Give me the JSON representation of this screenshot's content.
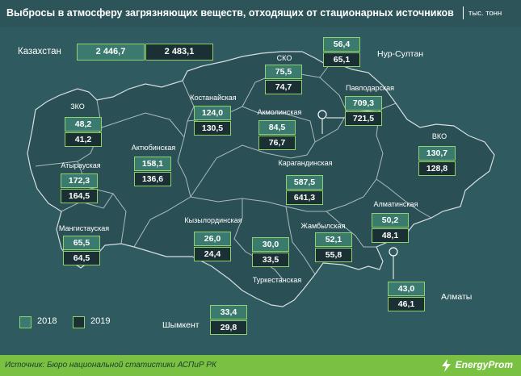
{
  "title": "Выбросы в атмосферу загрязняющих веществ, отходящих от стационарных источников",
  "unit": "тыс. тонн",
  "national": {
    "label": "Казахстан",
    "v2018": "2 446,7",
    "v2019": "2 483,1"
  },
  "regions": [
    {
      "id": "sko",
      "name": "СКО",
      "v2018": "75,5",
      "v2019": "74,7"
    },
    {
      "id": "nur-sultan",
      "name": "Нур-Султан",
      "v2018": "56,4",
      "v2019": "65,1"
    },
    {
      "id": "pavlodar",
      "name": "Павлодарская",
      "v2018": "709,3",
      "v2019": "721,5"
    },
    {
      "id": "kostanay",
      "name": "Костанайская",
      "v2018": "124,0",
      "v2019": "130,5"
    },
    {
      "id": "akmola",
      "name": "Акмолинская",
      "v2018": "84,5",
      "v2019": "76,7"
    },
    {
      "id": "zko",
      "name": "ЗКО",
      "v2018": "48,2",
      "v2019": "41,2"
    },
    {
      "id": "vko",
      "name": "ВКО",
      "v2018": "130,7",
      "v2019": "128,8"
    },
    {
      "id": "aktobe",
      "name": "Актюбинская",
      "v2018": "158,1",
      "v2019": "136,6"
    },
    {
      "id": "atyrau",
      "name": "Атырауская",
      "v2018": "172,3",
      "v2019": "164,5"
    },
    {
      "id": "karaganda",
      "name": "Карагандинская",
      "v2018": "587,5",
      "v2019": "641,3"
    },
    {
      "id": "almaty-obl",
      "name": "Алматинская",
      "v2018": "50,2",
      "v2019": "48,1"
    },
    {
      "id": "mangystau",
      "name": "Мангистауская",
      "v2018": "65,5",
      "v2019": "64,5"
    },
    {
      "id": "kyzylorda",
      "name": "Кызылординская",
      "v2018": "26,0",
      "v2019": "24,4"
    },
    {
      "id": "zhambyl",
      "name": "Жамбылская",
      "v2018": "52,1",
      "v2019": "55,8"
    },
    {
      "id": "turkestan",
      "name": "Туркестанская",
      "v2018": "30,0",
      "v2019": "33,5"
    },
    {
      "id": "almaty",
      "name": "Алматы",
      "v2018": "43,0",
      "v2019": "46,1"
    },
    {
      "id": "shymkent",
      "name": "Шымкент",
      "v2018": "33,4",
      "v2019": "29,8"
    }
  ],
  "legend": {
    "y2018": "2018",
    "y2019": "2019"
  },
  "colors": {
    "background": "#2f5a5f",
    "box2018": "#3b7a6e",
    "box2019": "#1a3034",
    "border": "#8fd36a",
    "footer": "#7ac143"
  },
  "footer": {
    "source": "Источник: Бюро национальной  статистики АСПиР РК",
    "brand": "EnergyProm",
    "brand_icon": "lightning-icon"
  }
}
